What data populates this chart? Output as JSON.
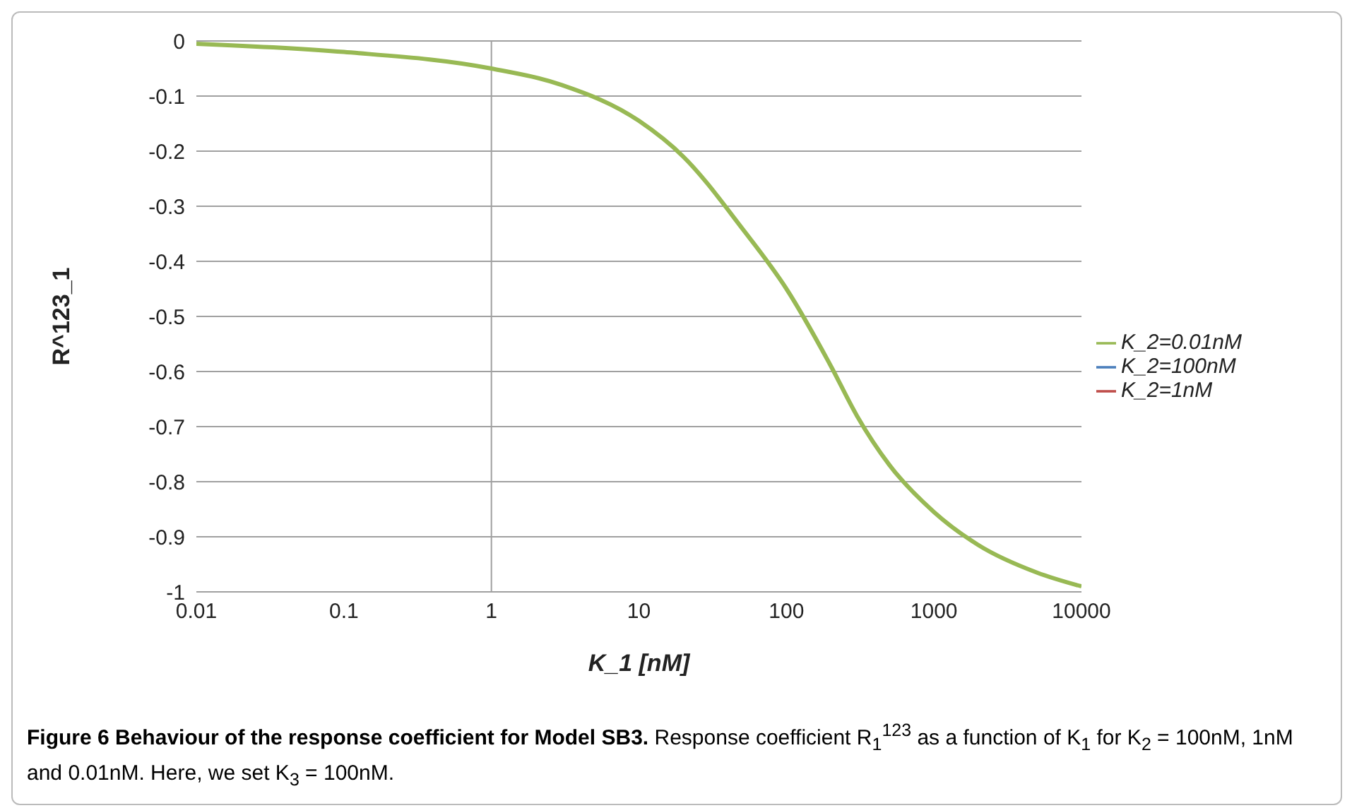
{
  "chart_data": {
    "type": "line",
    "title": "Figure 6 Behaviour of the response coefficient for Model SB3.",
    "annotations": [
      "Response coefficient R$_{1}$$^{123}$ as a function of K$_{1}$ for K$_{2}$ = 100nM, 1nM and 0.01nM. Here, we set K$_{3}$ = 100nM."
    ],
    "xlabel": "K_1 [nM]",
    "ylabel": "R^123_1",
    "log": "x",
    "x": [
      0.01,
      0.1,
      1,
      3,
      10,
      20,
      50,
      100,
      200,
      300,
      500,
      1000,
      2000,
      5000,
      10000
    ],
    "series": [
      {
        "name": "K_2=100nM",
        "color": "#4a7ebb",
        "values": [
          null,
          null,
          null,
          null,
          null,
          null,
          null,
          null,
          null,
          null,
          null,
          null,
          null,
          null,
          null
        ]
      },
      {
        "name": "K_2=1nM",
        "color": "#be4b48",
        "values": [
          null,
          null,
          null,
          null,
          null,
          null,
          null,
          null,
          null,
          null,
          null,
          null,
          null,
          null,
          null
        ]
      },
      {
        "name": "K_2=0.01nM",
        "color": "#98b954",
        "values": [
          -0.005,
          -0.02,
          -0.05,
          -0.08,
          -0.145,
          -0.21,
          -0.34,
          -0.45,
          -0.59,
          -0.68,
          -0.77,
          -0.855,
          -0.915,
          -0.965,
          -0.99
        ]
      }
    ],
    "xlim": [
      0.01,
      10000
    ],
    "xticks": [
      0.01,
      0.1,
      1,
      10,
      100,
      1000,
      10000
    ],
    "ylim": [
      -1,
      0
    ],
    "yticks": [
      0,
      -0.1,
      -0.2,
      -0.3,
      -0.4,
      -0.5,
      -0.6,
      -0.7,
      -0.8,
      -0.9,
      -1
    ],
    "grid": "y",
    "legend": "right",
    "marker": "none",
    "line_style": "solid",
    "ref_lines": [
      {
        "axis": "x",
        "value": 1,
        "color": "#a0a0a0"
      }
    ]
  }
}
